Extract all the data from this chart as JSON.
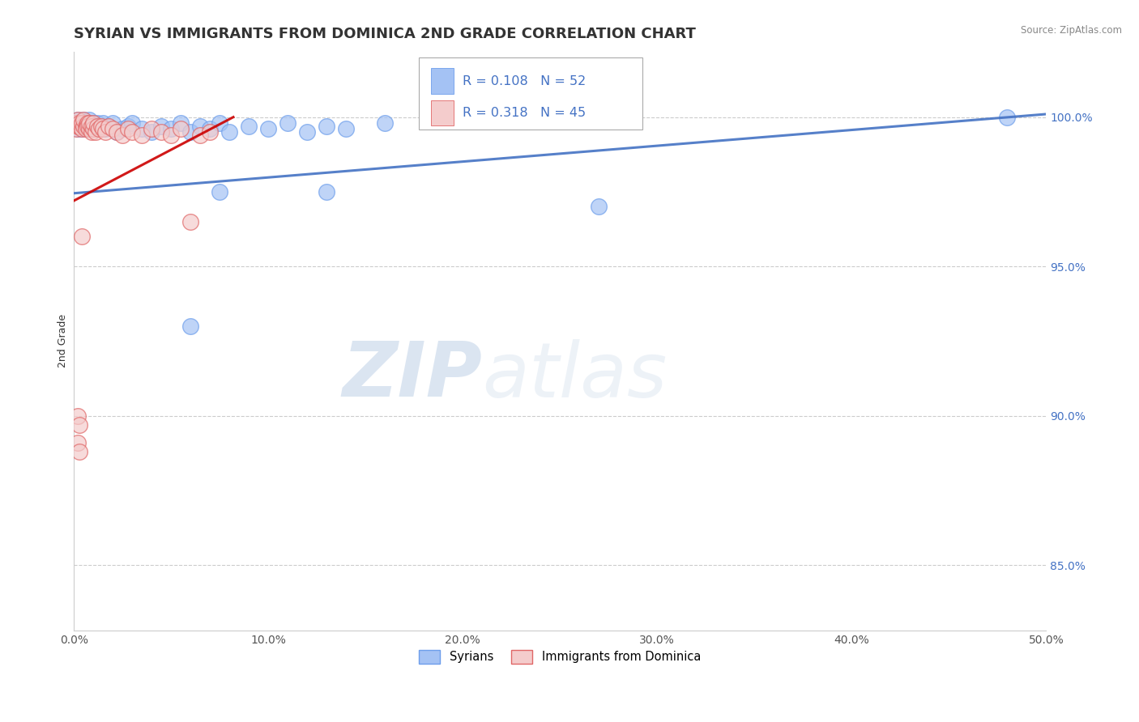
{
  "title": "SYRIAN VS IMMIGRANTS FROM DOMINICA 2ND GRADE CORRELATION CHART",
  "source_text": "Source: ZipAtlas.com",
  "ylabel": "2nd Grade",
  "xlim": [
    0.0,
    0.5
  ],
  "ylim": [
    0.828,
    1.022
  ],
  "xtick_labels": [
    "0.0%",
    "10.0%",
    "20.0%",
    "30.0%",
    "40.0%",
    "50.0%"
  ],
  "xtick_values": [
    0.0,
    0.1,
    0.2,
    0.3,
    0.4,
    0.5
  ],
  "ytick_labels": [
    "85.0%",
    "90.0%",
    "95.0%",
    "100.0%"
  ],
  "ytick_values": [
    0.85,
    0.9,
    0.95,
    1.0
  ],
  "blue_color": "#a4c2f4",
  "pink_color": "#f4cccc",
  "blue_edge_color": "#6d9eeb",
  "pink_edge_color": "#e06666",
  "blue_line_color": "#4472c4",
  "pink_line_color": "#cc0000",
  "legend_label1": "Syrians",
  "legend_label2": "Immigrants from Dominica",
  "watermark_zip": "ZIP",
  "watermark_atlas": "atlas",
  "background_color": "#ffffff",
  "grid_color": "#cccccc",
  "title_fontsize": 13,
  "axis_label_fontsize": 9,
  "tick_fontsize": 10,
  "blue_scatter_x": [
    0.001,
    0.002,
    0.002,
    0.003,
    0.003,
    0.004,
    0.004,
    0.005,
    0.005,
    0.006,
    0.006,
    0.007,
    0.007,
    0.008,
    0.008,
    0.009,
    0.009,
    0.01,
    0.011,
    0.012,
    0.013,
    0.014,
    0.015,
    0.016,
    0.018,
    0.02,
    0.022,
    0.025,
    0.028,
    0.03,
    0.035,
    0.04,
    0.045,
    0.05,
    0.055,
    0.06,
    0.065,
    0.07,
    0.075,
    0.08,
    0.09,
    0.1,
    0.11,
    0.12,
    0.13,
    0.14,
    0.16,
    0.27,
    0.48,
    0.075,
    0.13,
    0.06
  ],
  "blue_scatter_y": [
    0.998,
    0.996,
    0.999,
    0.997,
    0.998,
    0.996,
    0.998,
    0.997,
    0.999,
    0.997,
    0.998,
    0.996,
    0.998,
    0.997,
    0.999,
    0.997,
    0.996,
    0.998,
    0.997,
    0.998,
    0.996,
    0.997,
    0.998,
    0.996,
    0.997,
    0.998,
    0.995,
    0.996,
    0.997,
    0.998,
    0.996,
    0.995,
    0.997,
    0.996,
    0.998,
    0.995,
    0.997,
    0.996,
    0.998,
    0.995,
    0.997,
    0.996,
    0.998,
    0.995,
    0.997,
    0.996,
    0.998,
    0.97,
    1.0,
    0.975,
    0.975,
    0.93
  ],
  "pink_scatter_x": [
    0.001,
    0.001,
    0.002,
    0.002,
    0.003,
    0.003,
    0.004,
    0.004,
    0.005,
    0.005,
    0.006,
    0.006,
    0.007,
    0.007,
    0.008,
    0.008,
    0.009,
    0.009,
    0.01,
    0.01,
    0.011,
    0.012,
    0.013,
    0.014,
    0.015,
    0.016,
    0.018,
    0.02,
    0.022,
    0.025,
    0.028,
    0.03,
    0.035,
    0.04,
    0.045,
    0.05,
    0.055,
    0.06,
    0.065,
    0.07,
    0.002,
    0.003,
    0.002,
    0.003,
    0.004
  ],
  "pink_scatter_y": [
    0.998,
    0.996,
    0.997,
    0.999,
    0.997,
    0.998,
    0.996,
    0.998,
    0.997,
    0.999,
    0.997,
    0.996,
    0.998,
    0.997,
    0.996,
    0.998,
    0.995,
    0.997,
    0.996,
    0.998,
    0.995,
    0.997,
    0.996,
    0.997,
    0.996,
    0.995,
    0.997,
    0.996,
    0.995,
    0.994,
    0.996,
    0.995,
    0.994,
    0.996,
    0.995,
    0.994,
    0.996,
    0.965,
    0.994,
    0.995,
    0.9,
    0.897,
    0.891,
    0.888,
    0.96
  ],
  "blue_trend_x": [
    0.0,
    0.5
  ],
  "blue_trend_y": [
    0.9745,
    1.001
  ],
  "pink_trend_x": [
    0.0,
    0.082
  ],
  "pink_trend_y": [
    0.972,
    1.0
  ]
}
